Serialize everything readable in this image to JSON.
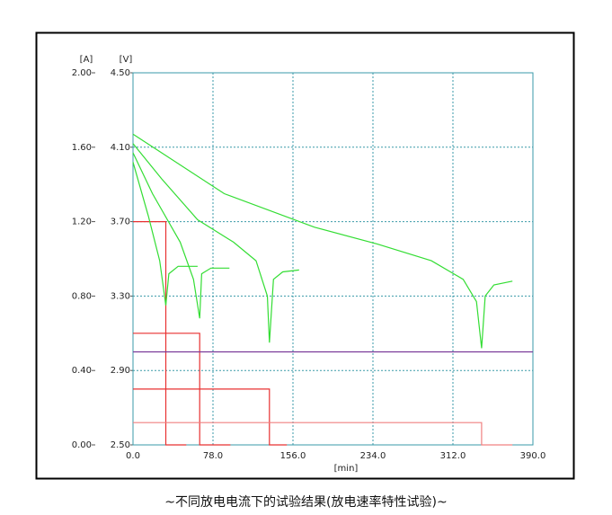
{
  "chart_data": {
    "type": "line",
    "caption": "~不同放电电流下的试验结果(放电速率特性试验)~",
    "y_label": "[A]",
    "y2_label": "[V]",
    "x_label": "[min]",
    "xlim": [
      0,
      390
    ],
    "xticks": [
      {
        "value": 0,
        "label": "0.0"
      },
      {
        "value": 78,
        "label": "78.0"
      },
      {
        "value": 156,
        "label": "156.0"
      },
      {
        "value": 234,
        "label": "234.0"
      },
      {
        "value": 312,
        "label": "312.0"
      },
      {
        "value": 390,
        "label": "390.0"
      }
    ],
    "ylim": [
      0,
      2
    ],
    "yticks": [
      {
        "value": 0,
        "label": "0.00"
      },
      {
        "value": 0.4,
        "label": "0.40"
      },
      {
        "value": 0.8,
        "label": "0.80"
      },
      {
        "value": 1.2,
        "label": "1.20"
      },
      {
        "value": 1.6,
        "label": "1.60"
      },
      {
        "value": 2,
        "label": "2.00"
      }
    ],
    "y2lim": [
      2.5,
      4.5
    ],
    "y2ticks": [
      {
        "value": 2.5,
        "label": "2.50"
      },
      {
        "value": 2.9,
        "label": "2.90"
      },
      {
        "value": 3.3,
        "label": "3.30"
      },
      {
        "value": 3.7,
        "label": "3.70"
      },
      {
        "value": 4.1,
        "label": "4.10"
      },
      {
        "value": 4.5,
        "label": "4.50"
      }
    ],
    "grid": true,
    "series": [
      {
        "color": "#e83030",
        "axis": "y",
        "x": [
          0,
          32,
          32,
          52
        ],
        "values": [
          1.2,
          1.2,
          0,
          0
        ]
      },
      {
        "color": "#e83030",
        "axis": "y",
        "x": [
          0,
          65,
          65,
          95
        ],
        "values": [
          0.6,
          0.6,
          0,
          0
        ]
      },
      {
        "color": "#e83030",
        "axis": "y",
        "x": [
          0,
          133,
          133,
          150
        ],
        "values": [
          0.3,
          0.3,
          0,
          0
        ]
      },
      {
        "color": "#f08080",
        "axis": "y",
        "x": [
          0,
          340,
          340,
          370
        ],
        "values": [
          0.12,
          0.12,
          0,
          0
        ]
      },
      {
        "color": "#7a3a9a",
        "axis": "y2",
        "x": [
          0,
          390
        ],
        "values": [
          3.0,
          3.0
        ]
      },
      {
        "color": "#33dd33",
        "axis": "y2",
        "x": [
          0,
          15,
          26,
          32,
          35,
          44,
          63
        ],
        "values": [
          4.02,
          3.73,
          3.49,
          3.25,
          3.42,
          3.46,
          3.46
        ]
      },
      {
        "color": "#33dd33",
        "axis": "y2",
        "x": [
          0,
          19,
          46,
          59,
          65,
          67,
          76,
          94
        ],
        "values": [
          4.07,
          3.85,
          3.59,
          3.39,
          3.18,
          3.42,
          3.45,
          3.45
        ]
      },
      {
        "color": "#33dd33",
        "axis": "y2",
        "x": [
          0,
          28,
          63,
          98,
          120,
          131,
          133,
          137,
          146,
          162
        ],
        "values": [
          4.12,
          3.93,
          3.71,
          3.59,
          3.49,
          3.3,
          3.05,
          3.39,
          3.43,
          3.44
        ]
      },
      {
        "color": "#33dd33",
        "axis": "y2",
        "x": [
          0,
          89,
          177,
          238,
          291,
          322,
          335,
          340,
          343.5,
          352,
          370
        ],
        "values": [
          4.17,
          3.85,
          3.67,
          3.58,
          3.49,
          3.39,
          3.27,
          3.02,
          3.3,
          3.36,
          3.38
        ]
      }
    ]
  }
}
